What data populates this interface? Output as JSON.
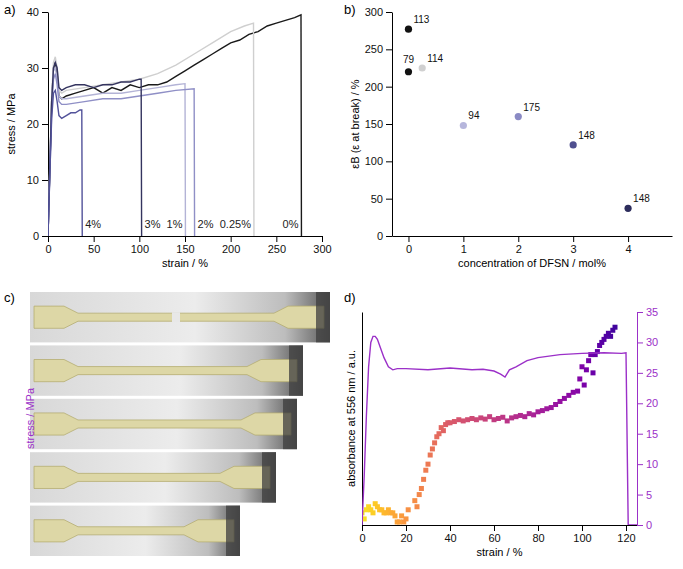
{
  "chart_data": [
    {
      "type": "line",
      "title": "a)",
      "x_label": "strain / %",
      "y_label": "stress / MPa",
      "xlim": [
        0,
        300
      ],
      "xticks": [
        0,
        50,
        100,
        150,
        200,
        250,
        300
      ],
      "ylim": [
        0,
        40
      ],
      "yticks": [
        0,
        10,
        20,
        30,
        40
      ],
      "series": [
        {
          "name": "0%",
          "color": "#1a1a1a",
          "x": [
            0,
            2,
            4,
            6,
            8,
            10,
            12,
            15,
            20,
            30,
            40,
            50,
            60,
            70,
            80,
            90,
            100,
            110,
            120,
            130,
            140,
            150,
            160,
            170,
            180,
            190,
            200,
            210,
            220,
            230,
            240,
            250,
            260,
            270,
            277,
            277.5
          ],
          "values": [
            0,
            12,
            24,
            30,
            31,
            29,
            25,
            24.5,
            25,
            25.5,
            26,
            26.5,
            25.5,
            26.5,
            26,
            27,
            26.5,
            27,
            27,
            27.5,
            28.5,
            29.5,
            30.5,
            31.5,
            32.5,
            33.5,
            34.5,
            35,
            36,
            36.5,
            37.5,
            38,
            38.5,
            39,
            39.5,
            0
          ]
        },
        {
          "name": "0.25%",
          "color": "#cfcfcf",
          "x": [
            0,
            2,
            4,
            6,
            8,
            10,
            12,
            15,
            20,
            40,
            60,
            80,
            100,
            120,
            140,
            160,
            180,
            200,
            215,
            225,
            225.5
          ],
          "values": [
            0,
            13,
            25,
            31,
            32,
            30,
            26,
            25.5,
            26,
            26.5,
            27,
            27.5,
            28,
            29,
            30.5,
            32.5,
            34.5,
            36.5,
            37.5,
            38,
            0
          ]
        },
        {
          "name": "1%",
          "color": "#b3b3d6",
          "x": [
            0,
            2,
            4,
            6,
            8,
            10,
            12,
            15,
            20,
            40,
            60,
            80,
            100,
            120,
            140,
            150,
            150.5
          ],
          "values": [
            0,
            12,
            24,
            29.5,
            30,
            28,
            25,
            24.5,
            24.5,
            25,
            25.5,
            25.5,
            26,
            26.5,
            27,
            27.2,
            0
          ]
        },
        {
          "name": "2%",
          "color": "#8f8fc6",
          "x": [
            0,
            2,
            4,
            6,
            8,
            10,
            12,
            15,
            20,
            40,
            60,
            80,
            100,
            120,
            140,
            160,
            160.5
          ],
          "values": [
            0,
            11,
            22,
            28,
            29,
            27,
            24,
            23.5,
            23.5,
            24,
            24.5,
            24.5,
            25,
            25.5,
            26,
            26.3,
            0
          ]
        },
        {
          "name": "3%",
          "color": "#34345f",
          "x": [
            0,
            2,
            4,
            6,
            8,
            10,
            12,
            15,
            20,
            30,
            40,
            50,
            60,
            70,
            80,
            90,
            100,
            102,
            102.5
          ],
          "values": [
            0,
            12,
            24,
            30,
            31,
            30,
            26.5,
            26,
            26.5,
            27,
            27,
            26.5,
            27,
            27,
            27.5,
            27.5,
            28,
            28,
            0
          ]
        },
        {
          "name": "4%",
          "color": "#52529a",
          "x": [
            0,
            2,
            4,
            6,
            8,
            10,
            12,
            15,
            20,
            25,
            30,
            35,
            37,
            37.5
          ],
          "values": [
            0,
            11,
            21,
            25.5,
            26,
            24,
            21.5,
            21,
            21.5,
            22,
            22,
            22.5,
            22.5,
            0
          ]
        }
      ]
    },
    {
      "type": "scatter",
      "title": "b)",
      "x_label": "concentration of DFSN / mol%",
      "y_label": "εB (ε at break) / %",
      "xlim": [
        -0.3,
        4.8
      ],
      "xticks": [
        0,
        1,
        2,
        3,
        4
      ],
      "ylim": [
        0,
        300
      ],
      "yticks": [
        0,
        50,
        100,
        150,
        200,
        250,
        300
      ],
      "x": [
        0,
        0,
        0.25,
        1,
        2,
        3,
        4
      ],
      "values": [
        277,
        220,
        225,
        148,
        160,
        122,
        37
      ],
      "colors": [
        "#111111",
        "#111111",
        "#d0d0d0",
        "#b6b6dc",
        "#8a8ac4",
        "#4f4f8f",
        "#2c2c5c"
      ],
      "annotations": [
        113,
        79,
        114,
        94,
        175,
        148,
        148
      ]
    },
    {
      "type": "image",
      "title": "c)"
    },
    {
      "type": "combo",
      "title": "d)",
      "x_label": "strain / %",
      "y_label": "absorbance at 556 nm / a.u.",
      "y2_label": "stress / MPa",
      "xlim": [
        0,
        125
      ],
      "xticks": [
        0,
        20,
        40,
        60,
        80,
        100,
        120
      ],
      "ylim": [
        0,
        35
      ],
      "yticks": [],
      "y2lim": [
        0,
        35
      ],
      "y2ticks": [
        0,
        5,
        10,
        15,
        20,
        25,
        30,
        35
      ],
      "series": [
        {
          "type": "scatter",
          "marker": "square",
          "x": [
            0,
            1,
            2,
            3,
            4,
            5,
            6,
            7,
            8,
            9,
            10,
            11,
            12,
            13,
            14,
            15,
            16,
            17,
            18,
            19,
            20,
            21,
            24,
            25,
            26,
            27,
            28,
            29,
            30,
            31,
            32,
            33,
            34,
            35,
            36,
            37,
            38,
            39,
            40,
            42,
            44,
            46,
            48,
            50,
            52,
            54,
            56,
            58,
            60,
            62,
            64,
            66,
            68,
            70,
            72,
            74,
            76,
            78,
            80,
            82,
            84,
            86,
            88,
            90,
            92,
            94,
            96,
            98,
            99,
            100,
            101,
            102,
            103,
            104,
            105,
            106,
            107,
            108,
            109,
            110,
            111,
            112,
            113,
            114,
            115
          ],
          "values": [
            2,
            1,
            2.5,
            3,
            2.5,
            2,
            3.5,
            3,
            2.5,
            2.5,
            2,
            2,
            2.5,
            2,
            2,
            1.5,
            0.5,
            0.5,
            1.5,
            0.5,
            1,
            2.5,
            4,
            3,
            5,
            6,
            7.5,
            9,
            10,
            11.5,
            12.5,
            13.5,
            14.5,
            15,
            16,
            15.5,
            16.5,
            16.8,
            16.8,
            17,
            17.3,
            17.1,
            17.3,
            17.5,
            17.3,
            17.6,
            17.4,
            17.8,
            17.3,
            17.5,
            17.7,
            17.1,
            17.6,
            17.8,
            18,
            17.8,
            18.3,
            18.1,
            18.6,
            18.8,
            19.1,
            19.3,
            19.8,
            20.3,
            20.8,
            21.3,
            21.8,
            22,
            24,
            26,
            23,
            25.5,
            27,
            28,
            25,
            28,
            28.5,
            29.5,
            30,
            30.5,
            31,
            31.5,
            31,
            32,
            32.5
          ]
        },
        {
          "type": "line",
          "axis": "y2",
          "color": "#9b30c8",
          "x": [
            0,
            1,
            2,
            3,
            4,
            5,
            6,
            7,
            8,
            10,
            12,
            14,
            16,
            20,
            30,
            40,
            50,
            55,
            60,
            63,
            65,
            67,
            70,
            75,
            80,
            90,
            100,
            110,
            118,
            120,
            121,
            122,
            125
          ],
          "values": [
            0,
            8,
            18,
            26,
            30,
            31,
            31,
            30.5,
            29.5,
            27.5,
            26,
            25.5,
            25.7,
            25.7,
            25.5,
            25.8,
            25.5,
            25.6,
            25.3,
            24.8,
            24.3,
            25.5,
            26,
            27,
            27.5,
            28,
            28.2,
            28.3,
            28.2,
            28.3,
            0,
            0,
            0
          ]
        }
      ]
    }
  ]
}
